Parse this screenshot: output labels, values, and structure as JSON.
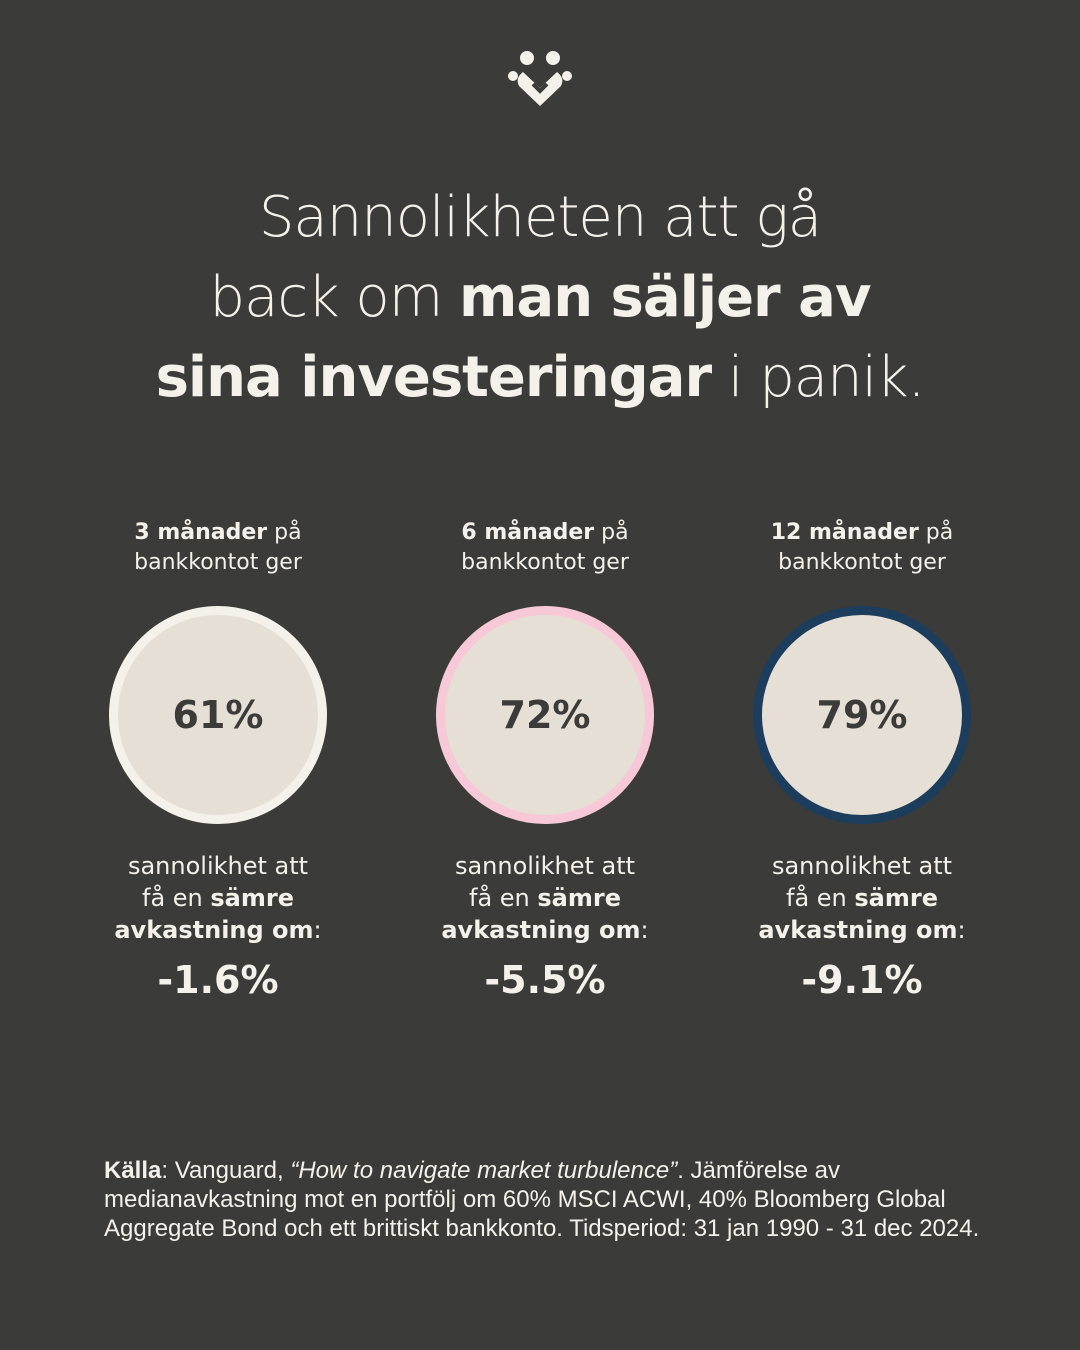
{
  "title": {
    "line1": "Sannolikheten att gå",
    "line2_regular": "back om ",
    "line2_bold": "man säljer av",
    "line3_bold": "sina investeringar",
    "line3_regular": " i panik."
  },
  "cards": [
    {
      "period": "3 månader",
      "period_rest": " på",
      "period_line2": "bankkontot ger",
      "value": "61%",
      "ring": "#f4f1ea",
      "caption_line1": "sannolikhet att",
      "caption_line2": "få en ",
      "caption_bold2": "sämre",
      "caption_bold3": "avkastning om",
      "caption_colon": ":",
      "return": "-1.6%"
    },
    {
      "period": "6 månader",
      "period_rest": " på",
      "period_line2": "bankkontot ger",
      "value": "72%",
      "ring": "#f6c8d8",
      "caption_line1": "sannolikhet att",
      "caption_line2": "få en ",
      "caption_bold2": "sämre",
      "caption_bold3": "avkastning om",
      "caption_colon": ":",
      "return": "-5.5%"
    },
    {
      "period": "12 månader",
      "period_rest": " på",
      "period_line2": "bankkontot ger",
      "value": "79%",
      "ring": "#1c3d5c",
      "caption_line1": "sannolikhet att",
      "caption_line2": "få en ",
      "caption_bold2": "sämre",
      "caption_bold3": "avkastning om",
      "caption_colon": ":",
      "return": "-9.1%"
    }
  ],
  "source": {
    "label": "Källa",
    "after_label": ": Vanguard, ",
    "report": "“How to navigate market turbulence”",
    "text": ". Jämförelse av medianavkastning mot en portfölj om 60% MSCI ACWI, 40% Bloomberg Global Aggregate Bond och ett brittiskt bankkonto. Tidsperiod: 31 jan 1990 - 31 dec 2024."
  }
}
